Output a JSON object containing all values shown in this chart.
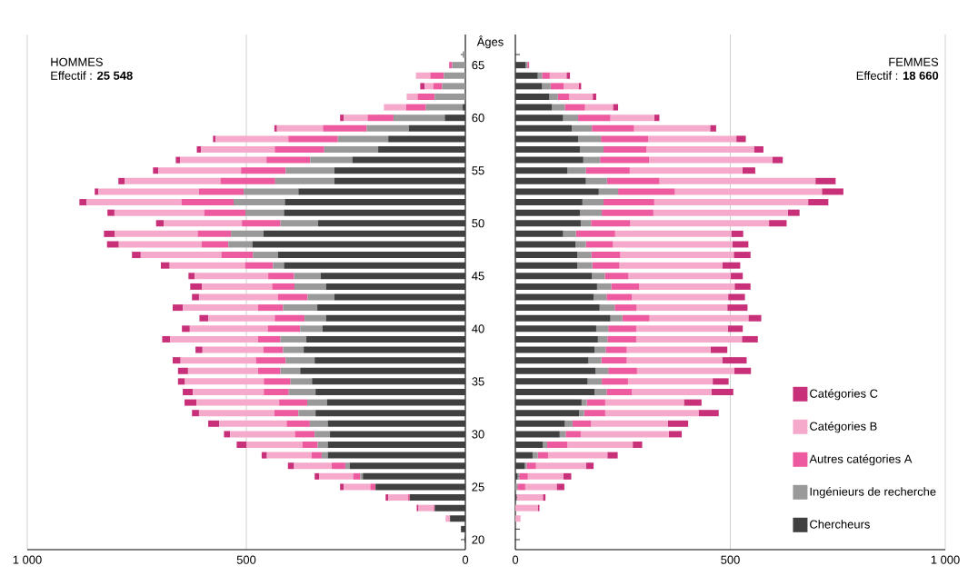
{
  "chart_data": [
    {
      "type": "bar",
      "orientation": "horizontal",
      "stacked": true,
      "ylabel": "Âges",
      "categories": [
        null,
        "65",
        null,
        null,
        null,
        null,
        "60",
        null,
        null,
        null,
        null,
        "55",
        null,
        null,
        null,
        null,
        "50",
        null,
        null,
        null,
        null,
        "45",
        null,
        null,
        null,
        null,
        "40",
        null,
        null,
        null,
        null,
        "35",
        null,
        null,
        null,
        null,
        "30",
        null,
        null,
        null,
        null,
        "25",
        null,
        null,
        null,
        null,
        "20"
      ],
      "series": [
        {
          "color": "#404040",
          "values": [
            0,
            0,
            0,
            0,
            0,
            6,
            47,
            129,
            176,
            199,
            258,
            299,
            299,
            381,
            412,
            414,
            336,
            461,
            486,
            428,
            414,
            330,
            318,
            299,
            338,
            318,
            326,
            363,
            369,
            344,
            377,
            350,
            342,
            316,
            342,
            314,
            309,
            314,
            314,
            264,
            234,
            205,
            127,
            70,
            35,
            10,
            2
          ]
        },
        {
          "color": "#999999",
          "values": [
            6,
            30,
            49,
            53,
            70,
            84,
            117,
            96,
            115,
            123,
            96,
            111,
            135,
            125,
            117,
            88,
            86,
            74,
            55,
            57,
            25,
            61,
            72,
            61,
            78,
            49,
            51,
            59,
            47,
            66,
            45,
            49,
            61,
            45,
            39,
            41,
            35,
            23,
            14,
            10,
            6,
            0,
            0,
            0,
            0,
            0,
            0
          ]
        },
        {
          "color": "#ee5a9f",
          "values": [
            0,
            7,
            31,
            20,
            39,
            45,
            59,
            100,
            113,
            113,
            100,
            102,
            125,
            102,
            119,
            94,
            88,
            76,
            61,
            72,
            64,
            59,
            51,
            68,
            57,
            68,
            74,
            51,
            45,
            68,
            51,
            61,
            57,
            64,
            55,
            53,
            45,
            35,
            23,
            31,
            16,
            12,
            4,
            2,
            0,
            0,
            0
          ]
        },
        {
          "color": "#f5aacb",
          "values": [
            0,
            0,
            33,
            20,
            25,
            51,
            55,
            105,
            166,
            168,
            197,
            189,
            219,
            230,
            217,
            205,
            178,
            189,
            189,
            184,
            172,
            168,
            160,
            180,
            172,
            152,
            178,
            201,
            139,
            172,
            160,
            180,
            162,
            189,
            172,
            154,
            148,
            127,
            102,
            86,
            78,
            61,
            45,
            35,
            10,
            0,
            0
          ]
        },
        {
          "color": "#c8317a",
          "values": [
            0,
            0,
            0,
            10,
            0,
            0,
            8,
            6,
            6,
            10,
            10,
            12,
            14,
            8,
            16,
            16,
            18,
            25,
            27,
            20,
            20,
            14,
            27,
            16,
            23,
            20,
            18,
            18,
            16,
            18,
            23,
            16,
            23,
            27,
            16,
            25,
            14,
            23,
            12,
            14,
            10,
            8,
            6,
            4,
            0,
            0,
            0
          ]
        }
      ],
      "xlim": [
        1000,
        0
      ],
      "xticks": [
        {
          "value": 1000,
          "label": "1 000"
        },
        500,
        0
      ],
      "grid": "x",
      "annotations": [
        "HOMMES",
        "Effectif : **25 548**"
      ]
    },
    {
      "type": "bar",
      "orientation": "horizontal",
      "stacked": true,
      "tick_labels": "x",
      "legend": "bottom right",
      "categories": [
        null,
        "65",
        null,
        null,
        null,
        null,
        "60",
        null,
        null,
        null,
        null,
        "55",
        null,
        null,
        null,
        null,
        "50",
        null,
        null,
        null,
        null,
        "45",
        null,
        null,
        null,
        null,
        "40",
        null,
        null,
        null,
        null,
        "35",
        null,
        null,
        null,
        null,
        "30",
        null,
        null,
        null,
        null,
        "25",
        null,
        null,
        null,
        null,
        "20"
      ],
      "series": [
        {
          "name": "Chercheurs",
          "color": "#404040",
          "values": [
            0,
            24,
            52,
            62,
            79,
            85,
            111,
            131,
            146,
            150,
            158,
            121,
            164,
            194,
            156,
            150,
            152,
            111,
            140,
            144,
            144,
            178,
            190,
            182,
            196,
            221,
            188,
            192,
            184,
            170,
            186,
            168,
            184,
            154,
            148,
            115,
            103,
            64,
            40,
            22,
            5,
            0,
            3,
            0,
            0,
            0,
            0
          ]
        },
        {
          "name": "Ingénieurs de recherche",
          "color": "#999999",
          "values": [
            0,
            4,
            10,
            20,
            20,
            30,
            35,
            47,
            53,
            55,
            39,
            43,
            49,
            45,
            49,
            51,
            24,
            30,
            24,
            33,
            35,
            30,
            33,
            30,
            35,
            28,
            28,
            22,
            26,
            30,
            30,
            33,
            28,
            12,
            12,
            18,
            14,
            10,
            12,
            4,
            4,
            5,
            0,
            0,
            0,
            0,
            0
          ]
        },
        {
          "name": "Autres catégories A",
          "color": "#ee5a9f",
          "values": [
            0,
            4,
            18,
            30,
            26,
            47,
            75,
            98,
            110,
            100,
            114,
            102,
            122,
            132,
            118,
            120,
            91,
            91,
            63,
            67,
            63,
            55,
            65,
            59,
            51,
            63,
            65,
            67,
            49,
            59,
            67,
            61,
            59,
            43,
            49,
            43,
            35,
            47,
            24,
            22,
            20,
            18,
            0,
            0,
            0,
            0,
            0
          ]
        },
        {
          "name": "Catégories B",
          "color": "#f5aacb",
          "values": [
            0,
            0,
            39,
            35,
            55,
            65,
            102,
            177,
            205,
            250,
            287,
            262,
            363,
            342,
            358,
            313,
            323,
            270,
            278,
            264,
            240,
            238,
            222,
            224,
            211,
            230,
            213,
            246,
            195,
            222,
            226,
            197,
            185,
            183,
            217,
            179,
            205,
            152,
            138,
            116,
            83,
            73,
            61,
            52,
            12,
            0,
            0
          ]
        },
        {
          "name": "Catégories C",
          "color": "#c8317a",
          "values": [
            0,
            0,
            8,
            6,
            8,
            12,
            12,
            14,
            22,
            22,
            24,
            30,
            47,
            50,
            47,
            27,
            41,
            28,
            37,
            39,
            41,
            28,
            37,
            39,
            47,
            30,
            35,
            37,
            39,
            57,
            39,
            37,
            51,
            41,
            47,
            47,
            30,
            22,
            24,
            18,
            18,
            18,
            6,
            4,
            0,
            0,
            0
          ]
        }
      ],
      "xlim": [
        0,
        1000
      ],
      "xticks": [
        0,
        500,
        {
          "value": 1000,
          "label": "1 000"
        }
      ],
      "grid": "x",
      "annotations": [
        "FEMMES",
        "Effectif : **18 660**"
      ]
    }
  ]
}
